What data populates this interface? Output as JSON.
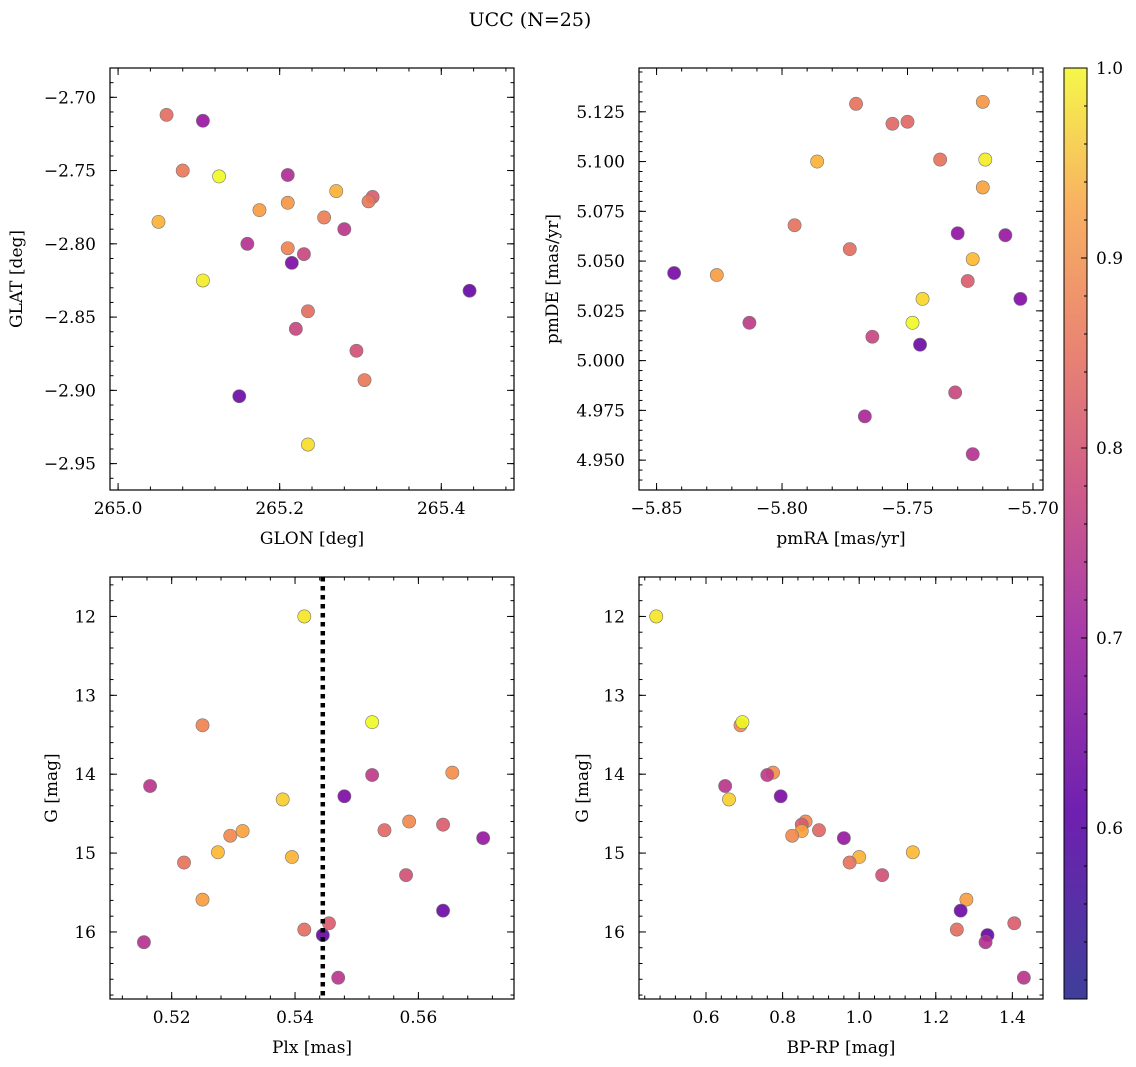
{
  "figure": {
    "title": "UCC (N=25)"
  },
  "colorbar": {
    "range": [
      0.51,
      1.0
    ],
    "ticks": [
      0.6,
      0.7,
      0.8,
      0.9,
      1.0
    ],
    "tick_labels": [
      "0.6",
      "0.7",
      "0.8",
      "0.9",
      "1.0"
    ],
    "colormap": "plasma"
  },
  "chart_data": [
    {
      "type": "scatter",
      "xlabel": "GLON [deg]",
      "ylabel": "GLAT [deg]",
      "xlim": [
        264.99,
        265.49
      ],
      "ylim": [
        -2.968,
        -2.68
      ],
      "y_inverted": false,
      "xticks": [
        265.0,
        265.2,
        265.4
      ],
      "xtick_labels": [
        "265.0",
        "265.2",
        "265.4"
      ],
      "yticks": [
        -2.7,
        -2.75,
        -2.8,
        -2.85,
        -2.9,
        -2.95
      ],
      "ytick_labels": [
        "−2.70",
        "−2.75",
        "−2.80",
        "−2.85",
        "−2.90",
        "−2.95"
      ],
      "points": [
        {
          "x": 265.06,
          "y": -2.712,
          "c": 0.75
        },
        {
          "x": 265.105,
          "y": -2.716,
          "c": 0.59
        },
        {
          "x": 265.08,
          "y": -2.75,
          "c": 0.77
        },
        {
          "x": 265.125,
          "y": -2.754,
          "c": 0.98
        },
        {
          "x": 265.21,
          "y": -2.753,
          "c": 0.63
        },
        {
          "x": 265.27,
          "y": -2.764,
          "c": 0.86
        },
        {
          "x": 265.315,
          "y": -2.768,
          "c": 0.72
        },
        {
          "x": 265.31,
          "y": -2.771,
          "c": 0.77
        },
        {
          "x": 265.21,
          "y": -2.772,
          "c": 0.82
        },
        {
          "x": 265.175,
          "y": -2.777,
          "c": 0.83
        },
        {
          "x": 265.255,
          "y": -2.782,
          "c": 0.78
        },
        {
          "x": 265.05,
          "y": -2.785,
          "c": 0.86
        },
        {
          "x": 265.28,
          "y": -2.79,
          "c": 0.65
        },
        {
          "x": 265.16,
          "y": -2.8,
          "c": 0.64
        },
        {
          "x": 265.21,
          "y": -2.803,
          "c": 0.79
        },
        {
          "x": 265.23,
          "y": -2.807,
          "c": 0.68
        },
        {
          "x": 265.215,
          "y": -2.813,
          "c": 0.55
        },
        {
          "x": 265.105,
          "y": -2.825,
          "c": 0.94
        },
        {
          "x": 265.435,
          "y": -2.832,
          "c": 0.52
        },
        {
          "x": 265.235,
          "y": -2.846,
          "c": 0.75
        },
        {
          "x": 265.22,
          "y": -2.858,
          "c": 0.68
        },
        {
          "x": 265.295,
          "y": -2.873,
          "c": 0.7
        },
        {
          "x": 265.305,
          "y": -2.893,
          "c": 0.77
        },
        {
          "x": 265.15,
          "y": -2.904,
          "c": 0.53
        },
        {
          "x": 265.235,
          "y": -2.937,
          "c": 0.92
        }
      ]
    },
    {
      "type": "scatter",
      "xlabel": "pmRA [mas/yr]",
      "ylabel": "pmDE [mas/yr]",
      "xlim": [
        -5.857,
        -5.696
      ],
      "ylim": [
        4.935,
        5.147
      ],
      "y_inverted": false,
      "xticks": [
        -5.85,
        -5.8,
        -5.75,
        -5.7
      ],
      "xtick_labels": [
        "−5.85",
        "−5.80",
        "−5.75",
        "−5.70"
      ],
      "yticks": [
        4.95,
        4.975,
        5.0,
        5.025,
        5.05,
        5.075,
        5.1,
        5.125
      ],
      "ytick_labels": [
        "4.950",
        "4.975",
        "5.000",
        "5.025",
        "5.050",
        "5.075",
        "5.100",
        "5.125"
      ],
      "points": [
        {
          "x": -5.7705,
          "y": 5.129,
          "c": 0.76
        },
        {
          "x": -5.72,
          "y": 5.13,
          "c": 0.82
        },
        {
          "x": -5.756,
          "y": 5.119,
          "c": 0.74
        },
        {
          "x": -5.75,
          "y": 5.12,
          "c": 0.74
        },
        {
          "x": -5.737,
          "y": 5.101,
          "c": 0.76
        },
        {
          "x": -5.719,
          "y": 5.101,
          "c": 0.94
        },
        {
          "x": -5.786,
          "y": 5.1,
          "c": 0.86
        },
        {
          "x": -5.72,
          "y": 5.087,
          "c": 0.84
        },
        {
          "x": -5.795,
          "y": 5.068,
          "c": 0.76
        },
        {
          "x": -5.73,
          "y": 5.064,
          "c": 0.58
        },
        {
          "x": -5.711,
          "y": 5.063,
          "c": 0.59
        },
        {
          "x": -5.773,
          "y": 5.056,
          "c": 0.75
        },
        {
          "x": -5.724,
          "y": 5.051,
          "c": 0.87
        },
        {
          "x": -5.843,
          "y": 5.044,
          "c": 0.54
        },
        {
          "x": -5.826,
          "y": 5.043,
          "c": 0.83
        },
        {
          "x": -5.726,
          "y": 5.04,
          "c": 0.72
        },
        {
          "x": -5.744,
          "y": 5.031,
          "c": 0.91
        },
        {
          "x": -5.705,
          "y": 5.031,
          "c": 0.56
        },
        {
          "x": -5.813,
          "y": 5.019,
          "c": 0.66
        },
        {
          "x": -5.748,
          "y": 5.019,
          "c": 0.99
        },
        {
          "x": -5.764,
          "y": 5.012,
          "c": 0.68
        },
        {
          "x": -5.745,
          "y": 5.008,
          "c": 0.53
        },
        {
          "x": -5.731,
          "y": 4.984,
          "c": 0.68
        },
        {
          "x": -5.767,
          "y": 4.972,
          "c": 0.62
        },
        {
          "x": -5.724,
          "y": 4.953,
          "c": 0.64
        }
      ]
    },
    {
      "type": "scatter",
      "xlabel": "Plx [mas]",
      "ylabel": "G [mag]",
      "xlim": [
        0.51,
        0.5755
      ],
      "ylim": [
        16.85,
        11.5
      ],
      "y_inverted": true,
      "xticks": [
        0.52,
        0.54,
        0.56
      ],
      "xtick_labels": [
        "0.52",
        "0.54",
        "0.56"
      ],
      "yticks": [
        12,
        13,
        14,
        15,
        16
      ],
      "ytick_labels": [
        "12",
        "13",
        "14",
        "15",
        "16"
      ],
      "vline": {
        "x": 0.5445,
        "style": "dotted"
      },
      "points": [
        {
          "x": 0.5415,
          "y": 12.0,
          "c": 0.93
        },
        {
          "x": 0.5525,
          "y": 13.34,
          "c": 0.97
        },
        {
          "x": 0.525,
          "y": 13.38,
          "c": 0.79
        },
        {
          "x": 0.5655,
          "y": 13.98,
          "c": 0.81
        },
        {
          "x": 0.5525,
          "y": 14.01,
          "c": 0.66
        },
        {
          "x": 0.5165,
          "y": 14.15,
          "c": 0.65
        },
        {
          "x": 0.548,
          "y": 14.28,
          "c": 0.55
        },
        {
          "x": 0.538,
          "y": 14.32,
          "c": 0.9
        },
        {
          "x": 0.5585,
          "y": 14.6,
          "c": 0.8
        },
        {
          "x": 0.564,
          "y": 14.64,
          "c": 0.72
        },
        {
          "x": 0.5545,
          "y": 14.71,
          "c": 0.74
        },
        {
          "x": 0.5315,
          "y": 14.72,
          "c": 0.84
        },
        {
          "x": 0.5295,
          "y": 14.78,
          "c": 0.8
        },
        {
          "x": 0.5705,
          "y": 14.81,
          "c": 0.59
        },
        {
          "x": 0.5275,
          "y": 14.99,
          "c": 0.87
        },
        {
          "x": 0.5395,
          "y": 15.05,
          "c": 0.86
        },
        {
          "x": 0.522,
          "y": 15.12,
          "c": 0.76
        },
        {
          "x": 0.558,
          "y": 15.28,
          "c": 0.7
        },
        {
          "x": 0.525,
          "y": 15.59,
          "c": 0.83
        },
        {
          "x": 0.564,
          "y": 15.73,
          "c": 0.53
        },
        {
          "x": 0.5455,
          "y": 15.89,
          "c": 0.72
        },
        {
          "x": 0.5415,
          "y": 15.97,
          "c": 0.75
        },
        {
          "x": 0.5445,
          "y": 16.04,
          "c": 0.52
        },
        {
          "x": 0.5155,
          "y": 16.13,
          "c": 0.64
        },
        {
          "x": 0.547,
          "y": 16.58,
          "c": 0.65
        }
      ]
    },
    {
      "type": "scatter",
      "xlabel": "BP-RP [mag]",
      "ylabel": "G [mag]",
      "xlim": [
        0.425,
        1.48
      ],
      "ylim": [
        16.85,
        11.5
      ],
      "y_inverted": true,
      "xticks": [
        0.6,
        0.8,
        1.0,
        1.2,
        1.4
      ],
      "xtick_labels": [
        "0.6",
        "0.8",
        "1.0",
        "1.2",
        "1.4"
      ],
      "yticks": [
        12,
        13,
        14,
        15,
        16
      ],
      "ytick_labels": [
        "12",
        "13",
        "14",
        "15",
        "16"
      ],
      "points": [
        {
          "x": 0.47,
          "y": 12.0,
          "c": 0.93
        },
        {
          "x": 0.69,
          "y": 13.38,
          "c": 0.8
        },
        {
          "x": 0.695,
          "y": 13.34,
          "c": 0.97
        },
        {
          "x": 0.775,
          "y": 13.98,
          "c": 0.81
        },
        {
          "x": 0.76,
          "y": 14.01,
          "c": 0.66
        },
        {
          "x": 0.65,
          "y": 14.15,
          "c": 0.65
        },
        {
          "x": 0.66,
          "y": 14.32,
          "c": 0.9
        },
        {
          "x": 0.795,
          "y": 14.28,
          "c": 0.55
        },
        {
          "x": 0.86,
          "y": 14.6,
          "c": 0.8
        },
        {
          "x": 0.85,
          "y": 14.64,
          "c": 0.72
        },
        {
          "x": 0.895,
          "y": 14.71,
          "c": 0.74
        },
        {
          "x": 0.85,
          "y": 14.72,
          "c": 0.84
        },
        {
          "x": 0.825,
          "y": 14.78,
          "c": 0.8
        },
        {
          "x": 0.96,
          "y": 14.81,
          "c": 0.59
        },
        {
          "x": 1.14,
          "y": 14.99,
          "c": 0.87
        },
        {
          "x": 1.0,
          "y": 15.05,
          "c": 0.86
        },
        {
          "x": 0.975,
          "y": 15.12,
          "c": 0.76
        },
        {
          "x": 1.06,
          "y": 15.28,
          "c": 0.7
        },
        {
          "x": 1.28,
          "y": 15.59,
          "c": 0.83
        },
        {
          "x": 1.265,
          "y": 15.73,
          "c": 0.53
        },
        {
          "x": 1.405,
          "y": 15.89,
          "c": 0.72
        },
        {
          "x": 1.255,
          "y": 15.97,
          "c": 0.75
        },
        {
          "x": 1.335,
          "y": 16.04,
          "c": 0.52
        },
        {
          "x": 1.33,
          "y": 16.13,
          "c": 0.64
        },
        {
          "x": 1.43,
          "y": 16.58,
          "c": 0.65
        }
      ]
    }
  ]
}
